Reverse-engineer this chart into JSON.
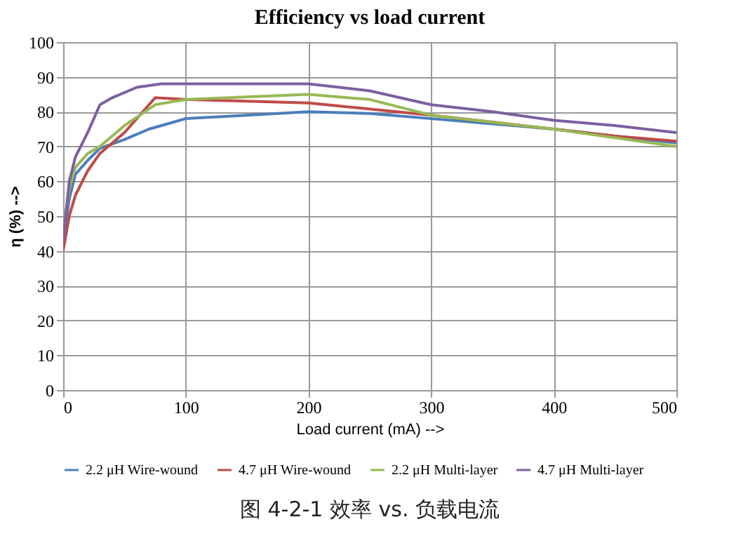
{
  "chart_data": {
    "type": "line",
    "title": "Efficiency vs load current",
    "xlabel": "Load current (mA) -->",
    "ylabel": "η (%) -->",
    "xlim": [
      0,
      500
    ],
    "xticks": [
      0,
      100,
      200,
      300,
      400,
      500
    ],
    "ylim": [
      0,
      100
    ],
    "yticks": [
      0,
      10,
      20,
      30,
      40,
      50,
      60,
      70,
      80,
      90,
      100
    ],
    "grid": true,
    "legend": "bottom",
    "marker": "none",
    "line_style": "solid",
    "annotations": [
      "图 4-2-1  效率  vs.  负载电流"
    ],
    "series": [
      {
        "name": "2.2 μH Wire-wound",
        "color": "#4a7ebb",
        "x": [
          0,
          5,
          10,
          20,
          30,
          50,
          70,
          100,
          150,
          200,
          250,
          300,
          350,
          400,
          450,
          500
        ],
        "values": [
          42,
          55,
          62,
          66,
          69.5,
          72,
          75,
          78,
          79,
          80,
          79.5,
          78,
          76.5,
          75,
          73,
          71
        ]
      },
      {
        "name": "4.7 μH Wire-wound",
        "color": "#be4b48",
        "x": [
          0,
          5,
          10,
          20,
          30,
          50,
          75,
          100,
          200,
          300,
          350,
          400,
          450,
          500
        ],
        "values": [
          40,
          50,
          56,
          63,
          68,
          74,
          84,
          83.5,
          82.5,
          79,
          77,
          75,
          73,
          71.5
        ]
      },
      {
        "name": "2.2 μH Multi-layer",
        "color": "#98b954",
        "x": [
          0,
          5,
          10,
          20,
          30,
          50,
          75,
          100,
          200,
          250,
          300,
          400,
          500
        ],
        "values": [
          45,
          58,
          64,
          68,
          70,
          76,
          82,
          83.5,
          85,
          83.5,
          79,
          75,
          70
        ]
      },
      {
        "name": "4.7 μH Multi-layer",
        "color": "#7d60a0",
        "x": [
          0,
          5,
          10,
          20,
          30,
          40,
          60,
          80,
          100,
          150,
          200,
          250,
          300,
          350,
          400,
          450,
          500
        ],
        "values": [
          43,
          60,
          67,
          74,
          82,
          84,
          87,
          88,
          88,
          88,
          88,
          86,
          82,
          80,
          77.5,
          76,
          74
        ]
      }
    ]
  }
}
